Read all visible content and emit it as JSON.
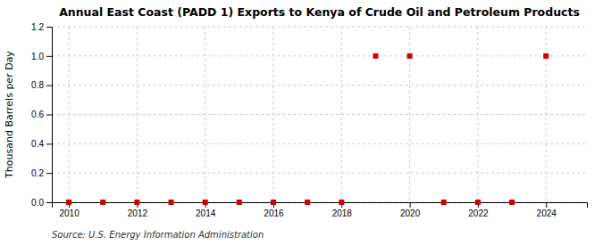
{
  "chart_data": {
    "type": "scatter",
    "title": "Annual East Coast (PADD 1) Exports to Kenya of Crude Oil and Petroleum Products",
    "ylabel": "Thousand Barrels per Day",
    "source": "Source: U.S. Energy Information Administration",
    "x": [
      2010,
      2011,
      2012,
      2013,
      2014,
      2015,
      2016,
      2017,
      2018,
      2019,
      2020,
      2021,
      2022,
      2023,
      2024
    ],
    "values": [
      0.0,
      0.0,
      0.0,
      0.0,
      0.0,
      0.0,
      0.0,
      0.0,
      0.0,
      1.0,
      1.0,
      0.0,
      0.0,
      0.0,
      1.0
    ],
    "xlim": [
      2009.5,
      2025.2
    ],
    "xticks": [
      2010,
      2012,
      2014,
      2016,
      2018,
      2020,
      2022,
      2024
    ],
    "ylim": [
      0.0,
      1.2
    ],
    "yticks": [
      {
        "value": 0.0,
        "label": "0.0"
      },
      0.2,
      0.4,
      0.6,
      0.8,
      {
        "value": 1.0,
        "label": "1.0"
      },
      1.2
    ],
    "color": "#cc0000",
    "marker": "square",
    "grid": true
  }
}
